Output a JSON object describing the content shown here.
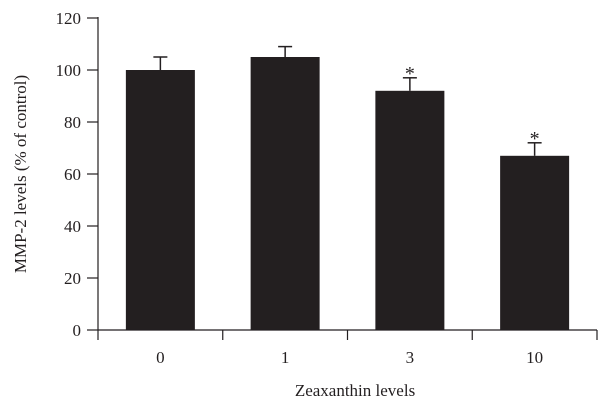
{
  "chart_data": {
    "type": "bar",
    "categories": [
      "0",
      "1",
      "3",
      "10"
    ],
    "values": [
      100,
      105,
      92,
      67
    ],
    "error": [
      5,
      4,
      5,
      5
    ],
    "significance": [
      "",
      "",
      "*",
      "*"
    ],
    "xlabel": "Zeaxanthin levels",
    "ylabel": "MMP-2 levels (% of control)",
    "ylim": [
      0,
      120
    ],
    "yticks": [
      0,
      20,
      40,
      60,
      80,
      100,
      120
    ],
    "grid": false,
    "legend": "none"
  },
  "colors": {
    "bar": "#231f20",
    "axis": "#231f20"
  }
}
